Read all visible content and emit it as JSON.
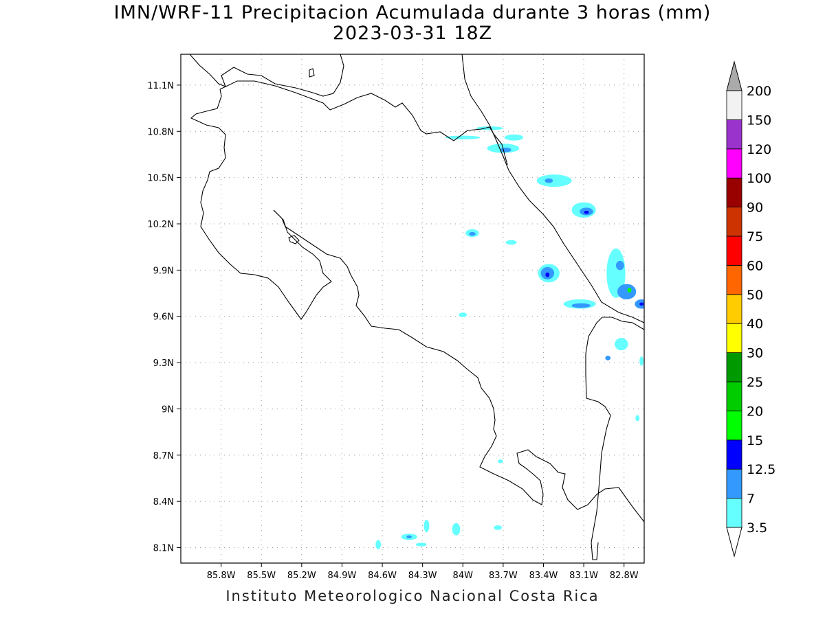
{
  "title": {
    "line1": "IMN/WRF-11 Precipitacion Acumulada durante 3 horas (mm)",
    "line2": "2023-03-31 18Z"
  },
  "footer": "Instituto Meteorologico Nacional Costa Rica",
  "axes": {
    "lon_range": [
      -86.1,
      -82.65
    ],
    "lat_range": [
      8.0,
      11.3
    ],
    "lon_ticks": [
      {
        "value": -85.8,
        "label": "85.8W"
      },
      {
        "value": -85.5,
        "label": "85.5W"
      },
      {
        "value": -85.2,
        "label": "85.2W"
      },
      {
        "value": -84.9,
        "label": "84.9W"
      },
      {
        "value": -84.6,
        "label": "84.6W"
      },
      {
        "value": -84.3,
        "label": "84.3W"
      },
      {
        "value": -84.0,
        "label": "84W"
      },
      {
        "value": -83.7,
        "label": "83.7W"
      },
      {
        "value": -83.4,
        "label": "83.4W"
      },
      {
        "value": -83.1,
        "label": "83.1W"
      },
      {
        "value": -82.8,
        "label": "82.8W"
      }
    ],
    "lat_ticks": [
      {
        "value": 11.1,
        "label": "11.1N"
      },
      {
        "value": 10.8,
        "label": "10.8N"
      },
      {
        "value": 10.5,
        "label": "10.5N"
      },
      {
        "value": 10.2,
        "label": "10.2N"
      },
      {
        "value": 9.9,
        "label": "9.9N"
      },
      {
        "value": 9.6,
        "label": "9.6N"
      },
      {
        "value": 9.3,
        "label": "9.3N"
      },
      {
        "value": 9.0,
        "label": "9N"
      },
      {
        "value": 8.7,
        "label": "8.7N"
      },
      {
        "value": 8.4,
        "label": "8.4N"
      },
      {
        "value": 8.1,
        "label": "8.1N"
      }
    ],
    "grid": "dotted"
  },
  "colorbar": {
    "levels": [
      {
        "label": "3.5",
        "color": "#66ffff"
      },
      {
        "label": "7",
        "color": "#3399ff"
      },
      {
        "label": "12.5",
        "color": "#0000ff"
      },
      {
        "label": "15",
        "color": "#00ff00"
      },
      {
        "label": "20",
        "color": "#00cc00"
      },
      {
        "label": "25",
        "color": "#009900"
      },
      {
        "label": "30",
        "color": "#ffff00"
      },
      {
        "label": "40",
        "color": "#ffcc00"
      },
      {
        "label": "50",
        "color": "#ff6600"
      },
      {
        "label": "60",
        "color": "#ff0000"
      },
      {
        "label": "75",
        "color": "#cc3300"
      },
      {
        "label": "90",
        "color": "#990000"
      },
      {
        "label": "100",
        "color": "#ff00ff"
      },
      {
        "label": "120",
        "color": "#9933cc"
      },
      {
        "label": "150",
        "color": "#f2f2f2"
      },
      {
        "label": "200",
        "color": "#aaaaaa"
      }
    ],
    "bottom_color": "#ffffff",
    "top_color": "#aaaaaa"
  },
  "chart_data": {
    "type": "heatmap",
    "variable": "3-hour accumulated precipitation (mm)",
    "x_units": "longitude (deg)",
    "y_units": "latitude (deg)",
    "cells": [
      {
        "lon": -83.8,
        "lat": 10.82,
        "rx": 0.1,
        "ry": 0.012,
        "mm": 3.5
      },
      {
        "lon": -83.62,
        "lat": 10.76,
        "rx": 0.07,
        "ry": 0.02,
        "mm": 3.5
      },
      {
        "lon": -84.0,
        "lat": 10.76,
        "rx": 0.13,
        "ry": 0.012,
        "mm": 3.5
      },
      {
        "lon": -83.7,
        "lat": 10.69,
        "rx": 0.12,
        "ry": 0.03,
        "mm": 3.5
      },
      {
        "lon": -83.68,
        "lat": 10.68,
        "rx": 0.04,
        "ry": 0.015,
        "mm": 7
      },
      {
        "lon": -83.32,
        "lat": 10.48,
        "rx": 0.13,
        "ry": 0.04,
        "mm": 3.5
      },
      {
        "lon": -83.36,
        "lat": 10.48,
        "rx": 0.03,
        "ry": 0.015,
        "mm": 7
      },
      {
        "lon": -83.1,
        "lat": 10.29,
        "rx": 0.09,
        "ry": 0.05,
        "mm": 3.5
      },
      {
        "lon": -83.08,
        "lat": 10.28,
        "rx": 0.05,
        "ry": 0.025,
        "mm": 7
      },
      {
        "lon": -83.08,
        "lat": 10.275,
        "rx": 0.018,
        "ry": 0.01,
        "mm": 12.5
      },
      {
        "lon": -83.93,
        "lat": 10.14,
        "rx": 0.05,
        "ry": 0.025,
        "mm": 3.5
      },
      {
        "lon": -83.93,
        "lat": 10.135,
        "rx": 0.025,
        "ry": 0.012,
        "mm": 7
      },
      {
        "lon": -83.64,
        "lat": 10.08,
        "rx": 0.04,
        "ry": 0.015,
        "mm": 3.5
      },
      {
        "lon": -83.36,
        "lat": 9.88,
        "rx": 0.08,
        "ry": 0.06,
        "mm": 3.5
      },
      {
        "lon": -83.37,
        "lat": 9.88,
        "rx": 0.05,
        "ry": 0.04,
        "mm": 7
      },
      {
        "lon": -83.37,
        "lat": 9.87,
        "rx": 0.015,
        "ry": 0.015,
        "mm": 12.5
      },
      {
        "lon": -83.13,
        "lat": 9.68,
        "rx": 0.12,
        "ry": 0.03,
        "mm": 3.5
      },
      {
        "lon": -83.12,
        "lat": 9.67,
        "rx": 0.07,
        "ry": 0.015,
        "mm": 7
      },
      {
        "lon": -82.86,
        "lat": 9.88,
        "rx": 0.07,
        "ry": 0.16,
        "mm": 3.5
      },
      {
        "lon": -82.83,
        "lat": 9.93,
        "rx": 0.03,
        "ry": 0.03,
        "mm": 7
      },
      {
        "lon": -82.78,
        "lat": 9.76,
        "rx": 0.07,
        "ry": 0.05,
        "mm": 7
      },
      {
        "lon": -82.76,
        "lat": 9.77,
        "rx": 0.015,
        "ry": 0.015,
        "mm": 15
      },
      {
        "lon": -82.67,
        "lat": 9.68,
        "rx": 0.05,
        "ry": 0.03,
        "mm": 7
      },
      {
        "lon": -82.67,
        "lat": 9.68,
        "rx": 0.015,
        "ry": 0.01,
        "mm": 12.5
      },
      {
        "lon": -82.82,
        "lat": 9.42,
        "rx": 0.05,
        "ry": 0.04,
        "mm": 3.5
      },
      {
        "lon": -82.92,
        "lat": 9.33,
        "rx": 0.02,
        "ry": 0.015,
        "mm": 7
      },
      {
        "lon": -84.0,
        "lat": 9.61,
        "rx": 0.03,
        "ry": 0.015,
        "mm": 3.5
      },
      {
        "lon": -84.4,
        "lat": 8.17,
        "rx": 0.06,
        "ry": 0.02,
        "mm": 3.5
      },
      {
        "lon": -84.4,
        "lat": 8.17,
        "rx": 0.02,
        "ry": 0.01,
        "mm": 7
      },
      {
        "lon": -84.31,
        "lat": 8.12,
        "rx": 0.04,
        "ry": 0.012,
        "mm": 3.5
      },
      {
        "lon": -84.63,
        "lat": 8.12,
        "rx": 0.02,
        "ry": 0.03,
        "mm": 3.5
      },
      {
        "lon": -84.05,
        "lat": 8.22,
        "rx": 0.03,
        "ry": 0.04,
        "mm": 3.5
      },
      {
        "lon": -84.27,
        "lat": 8.24,
        "rx": 0.02,
        "ry": 0.04,
        "mm": 3.5
      },
      {
        "lon": -83.74,
        "lat": 8.23,
        "rx": 0.03,
        "ry": 0.015,
        "mm": 3.5
      },
      {
        "lon": -82.67,
        "lat": 9.31,
        "rx": 0.015,
        "ry": 0.03,
        "mm": 3.5
      },
      {
        "lon": -82.7,
        "lat": 8.94,
        "rx": 0.015,
        "ry": 0.02,
        "mm": 3.5
      },
      {
        "lon": -83.72,
        "lat": 8.66,
        "rx": 0.02,
        "ry": 0.012,
        "mm": 3.5
      }
    ]
  }
}
